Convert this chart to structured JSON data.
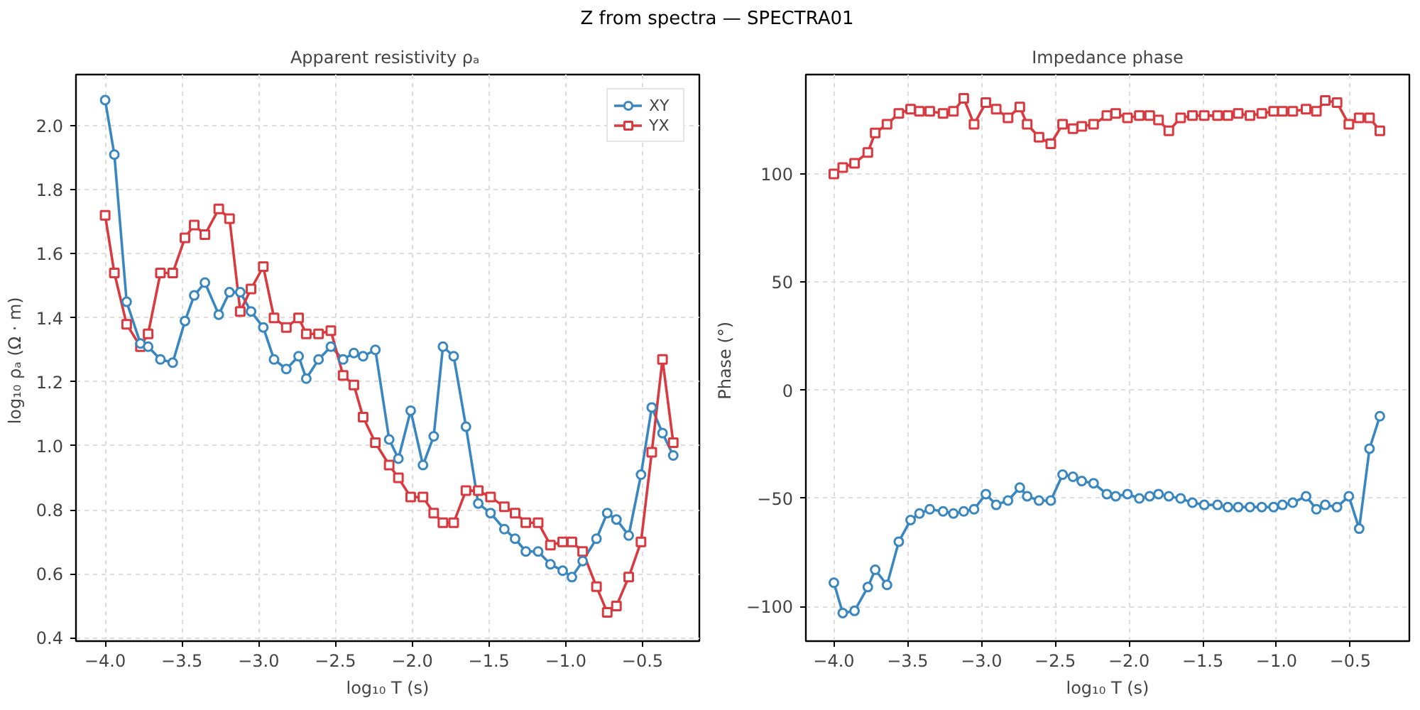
{
  "chart_data": [
    {
      "type": "line",
      "title": "Apparent resistivity  ρₐ",
      "annotations": [
        "Z from spectra — SPECTRA01"
      ],
      "xlabel": "log₁₀ T (s)",
      "ylabel": "log₁₀ ρₐ  (Ω · m)",
      "x": [
        -4.0,
        -3.94,
        -3.86,
        -3.77,
        -3.72,
        -3.64,
        -3.56,
        -3.48,
        -3.42,
        -3.35,
        -3.26,
        -3.19,
        -3.12,
        -3.05,
        -2.97,
        -2.9,
        -2.82,
        -2.74,
        -2.69,
        -2.61,
        -2.53,
        -2.45,
        -2.38,
        -2.32,
        -2.24,
        -2.15,
        -2.09,
        -2.01,
        -1.93,
        -1.86,
        -1.8,
        -1.73,
        -1.65,
        -1.57,
        -1.49,
        -1.4,
        -1.33,
        -1.26,
        -1.18,
        -1.1,
        -1.02,
        -0.96,
        -0.89,
        -0.8,
        -0.73,
        -0.67,
        -0.59,
        -0.51,
        -0.44,
        -0.37,
        -0.3
      ],
      "series": [
        {
          "name": "XY",
          "color": "#3a87c0",
          "marker": "circle",
          "values": [
            2.08,
            1.91,
            1.45,
            1.32,
            1.31,
            1.27,
            1.26,
            1.39,
            1.47,
            1.51,
            1.41,
            1.48,
            1.48,
            1.42,
            1.37,
            1.27,
            1.24,
            1.28,
            1.21,
            1.27,
            1.31,
            1.27,
            1.29,
            1.28,
            1.3,
            1.02,
            0.96,
            1.11,
            0.94,
            1.03,
            1.31,
            1.28,
            1.06,
            0.82,
            0.79,
            0.74,
            0.71,
            0.67,
            0.67,
            0.63,
            0.61,
            0.59,
            0.64,
            0.71,
            0.79,
            0.77,
            0.72,
            0.91,
            1.12,
            1.04,
            0.97
          ]
        },
        {
          "name": "YX",
          "color": "#d93a40",
          "marker": "square",
          "values": [
            1.72,
            1.54,
            1.38,
            1.31,
            1.35,
            1.54,
            1.54,
            1.65,
            1.69,
            1.66,
            1.74,
            1.71,
            1.42,
            1.49,
            1.56,
            1.4,
            1.37,
            1.4,
            1.35,
            1.35,
            1.36,
            1.22,
            1.19,
            1.09,
            1.01,
            0.94,
            0.9,
            0.84,
            0.84,
            0.79,
            0.76,
            0.76,
            0.86,
            0.86,
            0.84,
            0.81,
            0.79,
            0.76,
            0.76,
            0.69,
            0.7,
            0.7,
            0.67,
            0.56,
            0.48,
            0.5,
            0.59,
            0.7,
            0.98,
            1.27,
            1.01
          ]
        }
      ],
      "xlim": [
        -4.19,
        -0.13
      ],
      "ylim": [
        0.39,
        2.16
      ],
      "xticks": [
        {
          "value": -4.0,
          "label": "−4.0"
        },
        {
          "value": -3.5,
          "label": "−3.5"
        },
        {
          "value": -3.0,
          "label": "−3.0"
        },
        {
          "value": -2.5,
          "label": "−2.5"
        },
        {
          "value": -2.0,
          "label": "−2.0"
        },
        {
          "value": -1.5,
          "label": "−1.5"
        },
        {
          "value": -1.0,
          "label": "−1.0"
        },
        {
          "value": -0.5,
          "label": "−0.5"
        }
      ],
      "yticks": [
        0.4,
        0.6,
        0.8,
        {
          "value": 1.0,
          "label": "1.0"
        },
        1.2,
        1.4,
        1.6,
        1.8,
        {
          "value": 2.0,
          "label": "2.0"
        }
      ],
      "grid": true,
      "legend": "top right",
      "line_style": "solid"
    },
    {
      "type": "line",
      "title": "Impedance phase",
      "xlabel": "log₁₀ T (s)",
      "ylabel": "Phase  (°)",
      "x": [
        -4.0,
        -3.94,
        -3.86,
        -3.77,
        -3.72,
        -3.64,
        -3.56,
        -3.48,
        -3.42,
        -3.35,
        -3.26,
        -3.19,
        -3.12,
        -3.05,
        -2.97,
        -2.9,
        -2.82,
        -2.74,
        -2.69,
        -2.61,
        -2.53,
        -2.45,
        -2.38,
        -2.32,
        -2.24,
        -2.15,
        -2.09,
        -2.01,
        -1.93,
        -1.86,
        -1.8,
        -1.73,
        -1.65,
        -1.57,
        -1.49,
        -1.4,
        -1.33,
        -1.26,
        -1.18,
        -1.1,
        -1.02,
        -0.96,
        -0.89,
        -0.8,
        -0.73,
        -0.67,
        -0.59,
        -0.51,
        -0.44,
        -0.37,
        -0.3
      ],
      "series": [
        {
          "color": "#3a87c0",
          "marker": "circle",
          "values": [
            -89,
            -103,
            -102,
            -91,
            -83,
            -90,
            -70,
            -60,
            -57,
            -55,
            -56,
            -57,
            -56,
            -55,
            -48,
            -53,
            -51,
            -45,
            -49,
            -51,
            -51,
            -39,
            -40,
            -42,
            -43,
            -48,
            -49,
            -48,
            -50,
            -49,
            -48,
            -49,
            -50,
            -52,
            -53,
            -53,
            -54,
            -54,
            -54,
            -54,
            -54,
            -53,
            -52,
            -49,
            -55,
            -53,
            -54,
            -49,
            -64,
            -27,
            -12
          ]
        },
        {
          "color": "#d93a40",
          "marker": "square",
          "values": [
            100,
            103,
            105,
            110,
            119,
            123,
            128,
            130,
            129,
            129,
            128,
            129,
            135,
            123,
            133,
            130,
            126,
            131,
            123,
            117,
            114,
            123,
            121,
            122,
            123,
            127,
            128,
            126,
            127,
            127,
            125,
            120,
            126,
            127,
            127,
            127,
            127,
            128,
            127,
            128,
            129,
            129,
            129,
            130,
            129,
            134,
            133,
            123,
            126,
            126,
            120
          ]
        }
      ],
      "xlim": [
        -4.19,
        -0.1
      ],
      "ylim": [
        -116,
        146
      ],
      "xticks": [
        {
          "value": -4.0,
          "label": "−4.0"
        },
        {
          "value": -3.5,
          "label": "−3.5"
        },
        {
          "value": -3.0,
          "label": "−3.0"
        },
        {
          "value": -2.5,
          "label": "−2.5"
        },
        {
          "value": -2.0,
          "label": "−2.0"
        },
        {
          "value": -1.5,
          "label": "−1.5"
        },
        {
          "value": -1.0,
          "label": "−1.0"
        },
        {
          "value": -0.5,
          "label": "−0.5"
        }
      ],
      "yticks": [
        {
          "value": -100,
          "label": "−100"
        },
        {
          "value": -50,
          "label": "−50"
        },
        0,
        50,
        100
      ],
      "grid": true,
      "line_style": "solid"
    }
  ]
}
